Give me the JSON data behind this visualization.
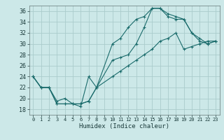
{
  "background_color": "#cce8e8",
  "grid_color": "#aacccc",
  "line_color": "#1a6b6b",
  "xlabel": "Humidex (Indice chaleur)",
  "ylabel_ticks": [
    18,
    20,
    22,
    24,
    26,
    28,
    30,
    32,
    34,
    36
  ],
  "xlim": [
    -0.5,
    23.5
  ],
  "ylim": [
    17.0,
    37.0
  ],
  "xticks": [
    0,
    1,
    2,
    3,
    4,
    5,
    6,
    7,
    8,
    9,
    10,
    11,
    12,
    13,
    14,
    15,
    16,
    17,
    18,
    19,
    20,
    21,
    22,
    23
  ],
  "series": [
    {
      "x": [
        0,
        1,
        2,
        3,
        4,
        5,
        6,
        7,
        8,
        10,
        11,
        12,
        13,
        14,
        15,
        16,
        17,
        18,
        19,
        20,
        21,
        22,
        23
      ],
      "y": [
        24,
        22,
        22,
        19,
        19,
        19,
        18.5,
        24,
        22,
        30,
        31,
        33,
        34.5,
        35,
        36.5,
        36.5,
        35.5,
        35,
        34.5,
        32,
        31,
        30,
        30.5
      ]
    },
    {
      "x": [
        0,
        1,
        2,
        3,
        4,
        5,
        6,
        7,
        8,
        10,
        11,
        12,
        13,
        14,
        15,
        16,
        17,
        18,
        19,
        20,
        21,
        22,
        23
      ],
      "y": [
        24,
        22,
        22,
        19.5,
        20,
        19,
        19,
        19.5,
        22,
        27,
        27.5,
        28,
        30,
        33,
        36.5,
        36.5,
        35,
        34.5,
        34.5,
        32,
        30.5,
        30,
        30.5
      ]
    },
    {
      "x": [
        0,
        1,
        2,
        3,
        4,
        5,
        6,
        7,
        8,
        10,
        11,
        12,
        13,
        14,
        15,
        16,
        17,
        18,
        19,
        20,
        21,
        22,
        23
      ],
      "y": [
        24,
        22,
        22,
        19,
        19,
        19,
        19,
        19.5,
        22,
        24,
        25,
        26,
        27,
        28,
        29,
        30.5,
        31,
        32,
        29,
        29.5,
        30,
        30.5,
        30.5
      ]
    }
  ]
}
